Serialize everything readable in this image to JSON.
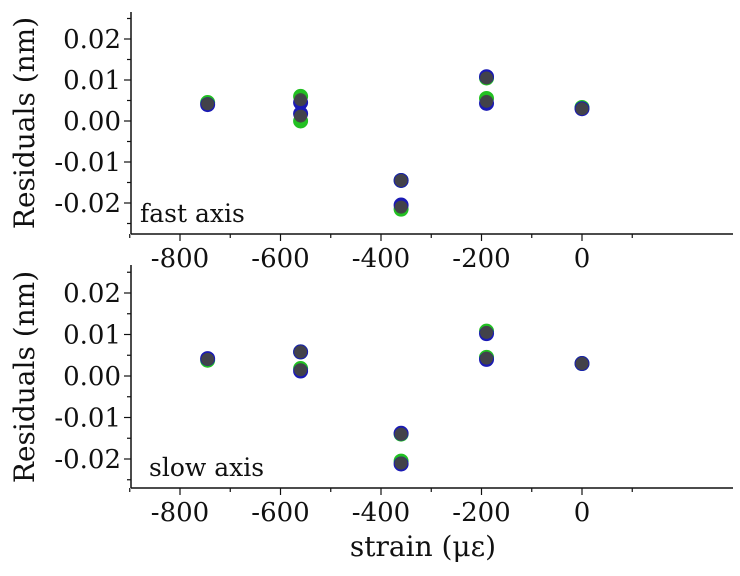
{
  "chart_data": [
    {
      "type": "scatter",
      "panel": "top",
      "annotation": "fast axis",
      "xlabel": "",
      "ylabel": "Residuals (nm)",
      "xlim": [
        -900,
        100
      ],
      "ylim": [
        -0.026,
        0.027
      ],
      "xticks": [
        -800,
        -600,
        -400,
        -200,
        0
      ],
      "xtick_labels": [
        "-800",
        "-600",
        "-400",
        "-200",
        "0"
      ],
      "yticks": [
        0.02,
        0.01,
        0.0,
        -0.01,
        -0.02
      ],
      "ytick_labels": [
        "0.02",
        "0.01",
        "0.00",
        "-0.01",
        "-0.02"
      ],
      "grid": false,
      "series": [
        {
          "name": "green",
          "color": "#22c022",
          "x": [
            -745,
            -560,
            -560,
            -360,
            -360,
            -190,
            -190,
            0
          ],
          "y": [
            0.0045,
            0.006,
            0.0,
            -0.0145,
            -0.0215,
            0.0105,
            0.0055,
            0.0033
          ]
        },
        {
          "name": "blue",
          "color": "#1a1ab4",
          "x": [
            -745,
            -560,
            -560,
            -360,
            -360,
            -190,
            -190,
            0
          ],
          "y": [
            0.004,
            0.0045,
            0.0018,
            -0.0145,
            -0.0205,
            0.0108,
            0.0043,
            0.003
          ]
        },
        {
          "name": "dark",
          "color": "#444444",
          "x": [
            -745,
            -560,
            -560,
            -360,
            -360,
            -190,
            -190,
            0
          ],
          "y": [
            0.0042,
            0.0052,
            0.0012,
            -0.0145,
            -0.021,
            0.0105,
            0.0048,
            0.003
          ]
        }
      ]
    },
    {
      "type": "scatter",
      "panel": "bottom",
      "annotation": "slow axis",
      "xlabel": "strain (με)",
      "ylabel": "Residuals (nm)",
      "xlim": [
        -900,
        100
      ],
      "ylim": [
        -0.026,
        0.027
      ],
      "xticks": [
        -800,
        -600,
        -400,
        -200,
        0
      ],
      "xtick_labels": [
        "-800",
        "-600",
        "-400",
        "-200",
        "0"
      ],
      "yticks": [
        0.02,
        0.01,
        0.0,
        -0.01,
        -0.02
      ],
      "ytick_labels": [
        "0.02",
        "0.01",
        "0.00",
        "-0.01",
        "-0.02"
      ],
      "grid": false,
      "series": [
        {
          "name": "green",
          "color": "#22c022",
          "x": [
            -745,
            -560,
            -560,
            -360,
            -360,
            -190,
            -190,
            0
          ],
          "y": [
            0.0038,
            0.0058,
            0.0018,
            -0.014,
            -0.0205,
            0.0108,
            0.0045,
            0.003
          ]
        },
        {
          "name": "blue",
          "color": "#1a1ab4",
          "x": [
            -745,
            -560,
            -560,
            -360,
            -360,
            -190,
            -190,
            0
          ],
          "y": [
            0.0042,
            0.0058,
            0.0012,
            -0.0138,
            -0.0212,
            0.0102,
            0.004,
            0.003
          ]
        },
        {
          "name": "dark",
          "color": "#444444",
          "x": [
            -745,
            -560,
            -560,
            -360,
            -360,
            -190,
            -190,
            0
          ],
          "y": [
            0.004,
            0.0058,
            0.0015,
            -0.014,
            -0.021,
            0.0105,
            0.0043,
            0.003
          ]
        }
      ]
    }
  ],
  "labels": {
    "top_ylabel": "Residuals (nm)",
    "bottom_ylabel": "Residuals (nm)",
    "xlabel": "strain (με)",
    "top_annotation": "fast axis",
    "bottom_annotation": "slow axis"
  }
}
